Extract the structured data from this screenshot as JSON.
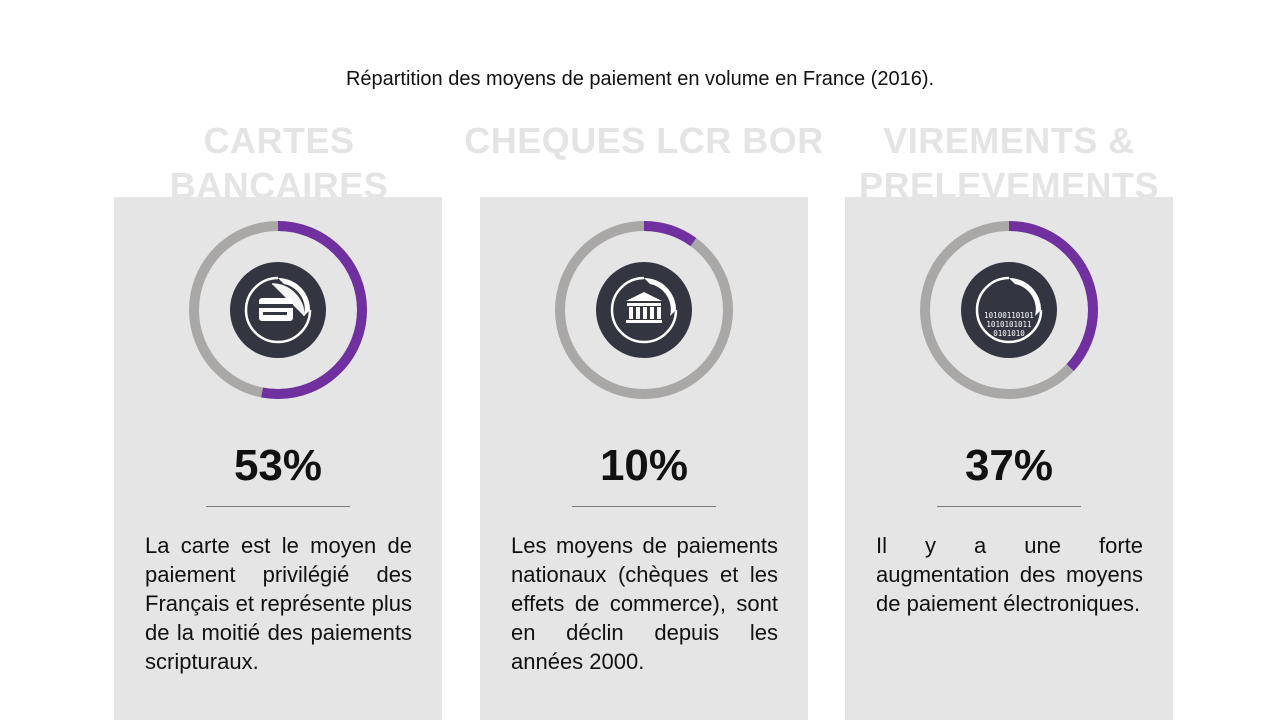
{
  "title": "Répartition des moyens de paiement en volume en France (2016).",
  "colors": {
    "accent": "#7030a0",
    "ring_track": "#aaa7a7",
    "icon_bg": "#333640",
    "card_bg": "#e5e5e5",
    "heading_ghost": "#e4e4e4"
  },
  "chart_data": {
    "type": "pie",
    "title": "Répartition des moyens de paiement en volume en France (2016).",
    "unit": "%",
    "slices": [
      {
        "name": "CARTES BANCAIRES",
        "value": 53
      },
      {
        "name": "CHEQUES LCR BOR",
        "value": 10
      },
      {
        "name": "VIREMENTS & PRELEVEMENTS",
        "value": 37
      }
    ]
  },
  "cards": [
    {
      "heading": "CARTES BANCAIRES",
      "percent_label": "53%",
      "value": 53,
      "icon": "credit-card-icon",
      "description": "La carte est le moyen de paiement privilégié des Français et représente plus de la moitié des paiements scripturaux."
    },
    {
      "heading": "CHEQUES LCR BOR",
      "percent_label": "10%",
      "value": 10,
      "icon": "bank-icon",
      "description": "Les moyens de paiements nationaux (chèques et les effets de commerce), sont en déclin depuis les années 2000."
    },
    {
      "heading": "VIREMENTS & PRELEVEMENTS",
      "percent_label": "37%",
      "value": 37,
      "icon": "binary-code-icon",
      "binary_text": [
        "10100110101",
        "1010101011",
        "0101010"
      ],
      "description": "Il y a une forte augmentation des moyens de paiement électroniques."
    }
  ]
}
